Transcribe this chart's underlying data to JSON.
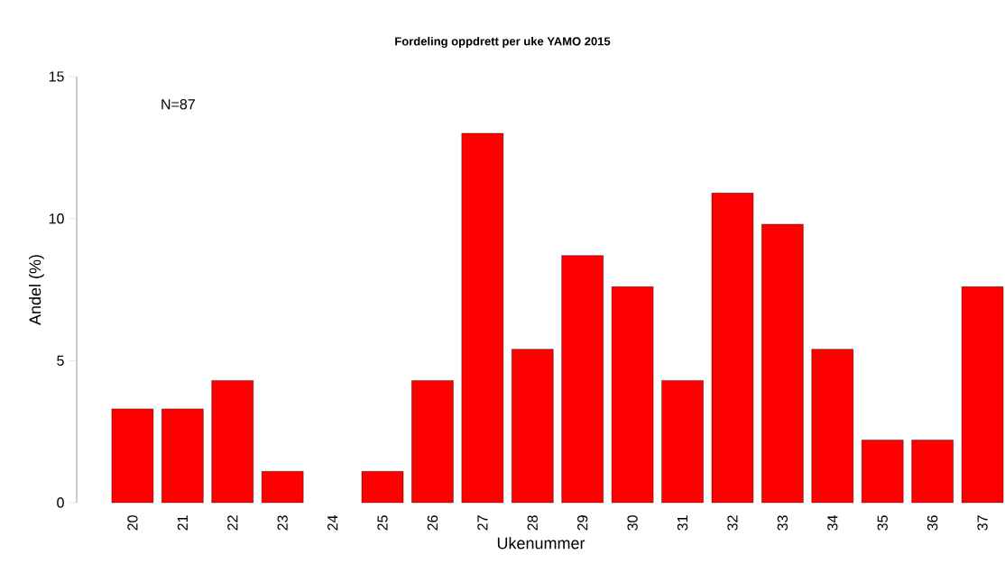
{
  "chart_data": {
    "type": "bar",
    "title": "Fordeling oppdrett per uke YAMO 2015",
    "xlabel": "Ukenummer",
    "ylabel": "Andel (%)",
    "categories": [
      "20",
      "21",
      "22",
      "23",
      "24",
      "25",
      "26",
      "27",
      "28",
      "29",
      "30",
      "31",
      "32",
      "33",
      "34",
      "35",
      "36",
      "37"
    ],
    "values": [
      3.3,
      3.3,
      4.3,
      1.1,
      0,
      1.1,
      4.3,
      13.0,
      5.4,
      8.7,
      7.6,
      4.3,
      10.9,
      9.8,
      5.4,
      2.2,
      2.2,
      7.6
    ],
    "color": "#ff0000",
    "ylim": [
      0,
      15
    ],
    "yticks": [
      0,
      5,
      10,
      15
    ],
    "annotations": [
      "N=87"
    ]
  }
}
